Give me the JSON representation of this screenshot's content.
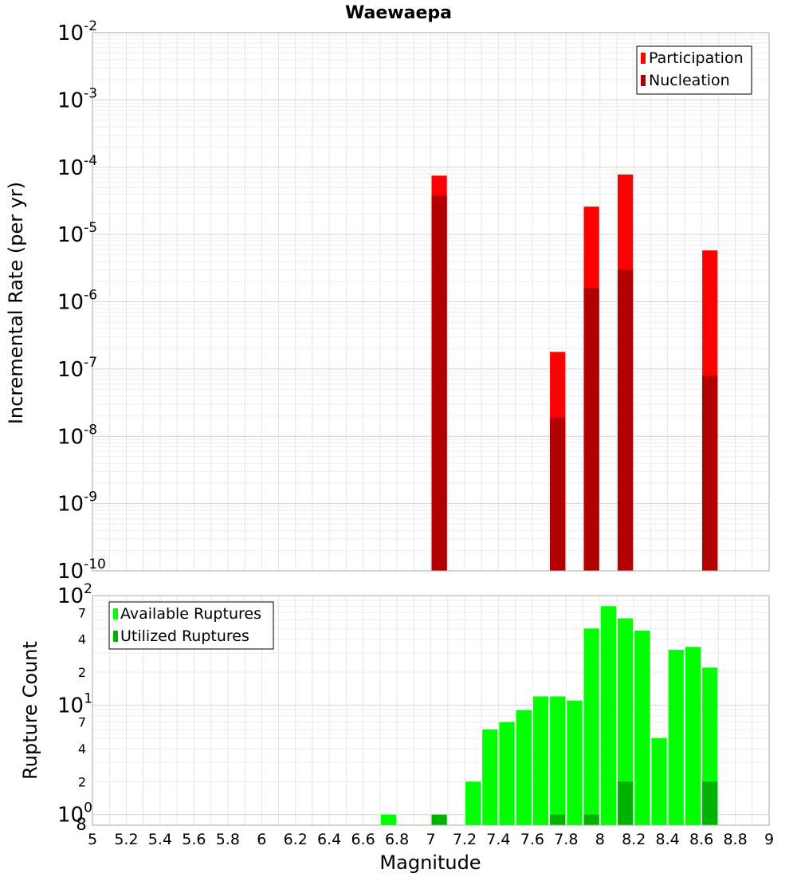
{
  "chart_data": [
    {
      "type": "bar",
      "panel": "top",
      "title": "Waewaepa",
      "ylabel": "Incremental Rate (per yr)",
      "yscale": "log",
      "ylim": [
        1e-10,
        0.01
      ],
      "xlim": [
        5,
        9
      ],
      "y_tick_bases": [
        "10",
        "10",
        "10",
        "10",
        "10",
        "10",
        "10",
        "10",
        "10"
      ],
      "y_tick_exponents": [
        "-10",
        "-9",
        "-8",
        "-7",
        "-6",
        "-5",
        "-4",
        "-3",
        "-2"
      ],
      "legend_position": "top-right",
      "grid": true,
      "series": [
        {
          "name": "Participation",
          "color": "#ff0000",
          "x": [
            7.05,
            7.75,
            7.95,
            8.15,
            8.65
          ],
          "values": [
            7.5e-05,
            1.8e-07,
            2.6e-05,
            7.8e-05,
            5.8e-06
          ]
        },
        {
          "name": "Nucleation",
          "color": "#b20000",
          "x": [
            7.05,
            7.75,
            7.95,
            8.15,
            8.65
          ],
          "values": [
            3.8e-05,
            1.9e-08,
            1.6e-06,
            3e-06,
            8e-08
          ]
        }
      ]
    },
    {
      "type": "bar",
      "panel": "bottom",
      "ylabel": "Rupture Count",
      "xlabel": "Magnitude",
      "yscale": "log",
      "ylim": [
        0.8,
        100
      ],
      "xlim": [
        5,
        9
      ],
      "x_ticks": [
        "5",
        "5.2",
        "5.4",
        "5.6",
        "5.8",
        "6",
        "6.2",
        "6.4",
        "6.6",
        "6.8",
        "7",
        "7.2",
        "7.4",
        "7.6",
        "7.8",
        "8",
        "8.2",
        "8.4",
        "8.6",
        "8.8",
        "9"
      ],
      "y_tick_labels": [
        {
          "value": 100,
          "base": "10",
          "exp": "2"
        },
        {
          "value": 10,
          "base": "10",
          "exp": "1"
        },
        {
          "value": 1,
          "base": "10",
          "exp": "0"
        }
      ],
      "y_minor_labels": [
        {
          "value": 70,
          "label": "7"
        },
        {
          "value": 40,
          "label": "4"
        },
        {
          "value": 20,
          "label": "2"
        },
        {
          "value": 7,
          "label": "7"
        },
        {
          "value": 4,
          "label": "4"
        },
        {
          "value": 2,
          "label": "2"
        },
        {
          "value": 0.8,
          "label": "8"
        }
      ],
      "legend_position": "top-left",
      "grid": true,
      "series": [
        {
          "name": "Available Ruptures",
          "color": "#00ff00",
          "x": [
            6.75,
            7.25,
            7.35,
            7.45,
            7.55,
            7.65,
            7.75,
            7.85,
            7.95,
            8.05,
            8.15,
            8.25,
            8.35,
            8.45,
            8.55,
            8.65
          ],
          "values": [
            1,
            2,
            6,
            7,
            9,
            12,
            12,
            11,
            50,
            80,
            62,
            48,
            5,
            32,
            34,
            22
          ]
        },
        {
          "name": "Utilized Ruptures",
          "color": "#00b200",
          "x": [
            7.05,
            7.75,
            7.95,
            8.15,
            8.65
          ],
          "values": [
            1,
            1,
            1,
            2,
            2
          ]
        }
      ]
    }
  ]
}
